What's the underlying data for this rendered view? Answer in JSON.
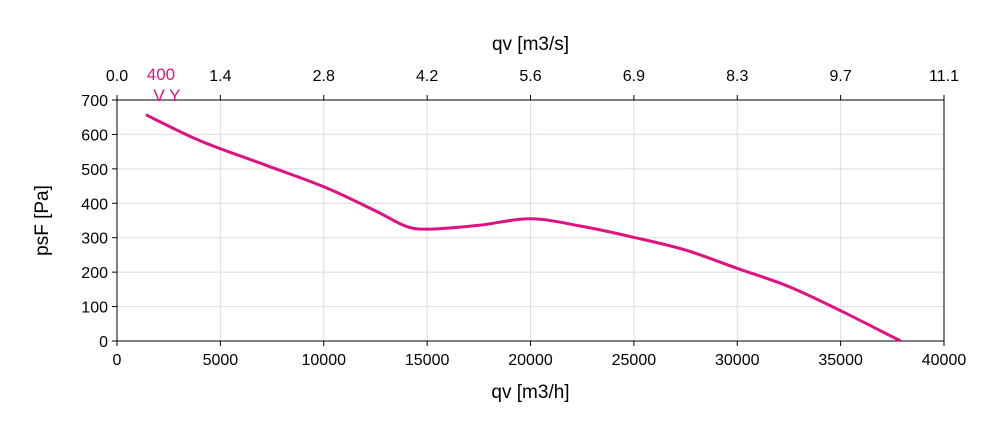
{
  "chart_data": {
    "type": "line",
    "xlabel": "qv [m3/h]",
    "x2label": "qv [m3/s]",
    "ylabel": "psF [Pa]",
    "xlim": [
      0,
      40000
    ],
    "ylim": [
      0,
      700
    ],
    "x_ticks": [
      "0",
      "5000",
      "10000",
      "15000",
      "20000",
      "25000",
      "30000",
      "35000",
      "40000"
    ],
    "x2_ticks": [
      "0.0",
      "1.4",
      "2.8",
      "4.2",
      "5.6",
      "6.9",
      "8.3",
      "9.7",
      "11.1"
    ],
    "y_ticks": [
      "0",
      "100",
      "200",
      "300",
      "400",
      "500",
      "600",
      "700"
    ],
    "grid": true,
    "series": [
      {
        "name": "400",
        "tag": "V Y",
        "color": "#e0127f",
        "x": [
          1400,
          4000,
          7000,
          10000,
          12500,
          14000,
          15200,
          17500,
          20000,
          22500,
          25000,
          27500,
          30000,
          32500,
          35000,
          37900
        ],
        "y": [
          657,
          582,
          515,
          448,
          378,
          333,
          325,
          336,
          355,
          333,
          301,
          264,
          211,
          158,
          88,
          0
        ]
      }
    ]
  }
}
